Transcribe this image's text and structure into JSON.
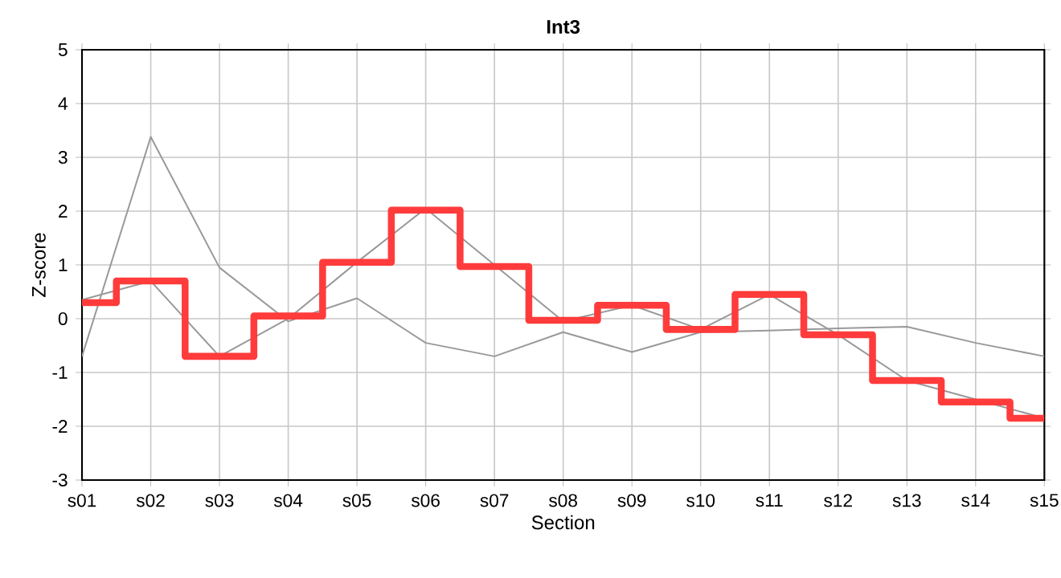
{
  "chart_data": {
    "type": "line",
    "title": "Int3",
    "xlabel": "Section",
    "ylabel": "Z-score",
    "categories": [
      "s01",
      "s02",
      "s03",
      "s04",
      "s05",
      "s06",
      "s07",
      "s08",
      "s09",
      "s10",
      "s11",
      "s12",
      "s13",
      "s14",
      "s15"
    ],
    "series": [
      {
        "color": "#999999",
        "values": [
          -0.7,
          3.38,
          0.95,
          -0.05,
          0.38,
          -0.45,
          -0.7,
          -0.25,
          -0.62,
          -0.25,
          -0.22,
          -0.18,
          -0.15,
          -0.45,
          -0.7
        ]
      },
      {
        "color": "#999999",
        "values": [
          0.35,
          0.7,
          -0.7,
          0.0,
          1.05,
          2.05,
          1.0,
          -0.05,
          0.25,
          -0.2,
          0.45,
          -0.3,
          -1.15,
          -1.5,
          -1.85
        ]
      },
      {
        "type": "step",
        "color": "#ff3b3b",
        "values": [
          0.3,
          0.7,
          -0.7,
          0.05,
          1.05,
          2.02,
          0.97,
          -0.03,
          0.25,
          -0.2,
          0.45,
          -0.3,
          -1.15,
          -1.55,
          -1.85
        ]
      }
    ],
    "ylim": [
      -3,
      5
    ],
    "yticks": [
      -3,
      -2,
      -1,
      0,
      1,
      2,
      3,
      4,
      5
    ],
    "grid": true,
    "marker": "none"
  }
}
